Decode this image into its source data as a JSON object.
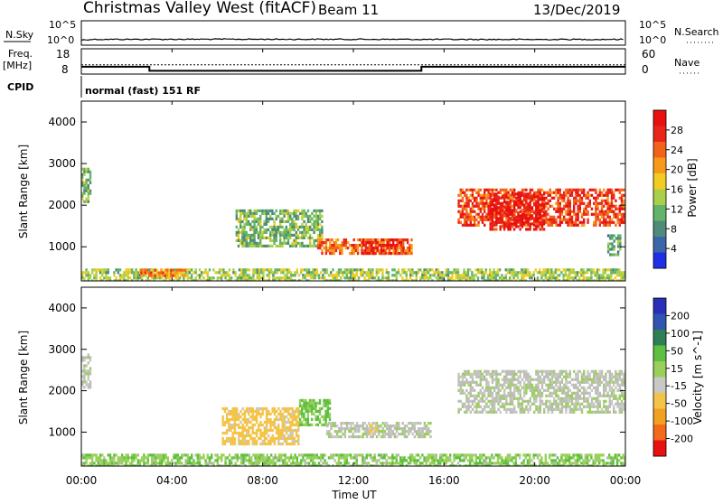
{
  "header": {
    "title": "Christmas Valley West (fitACF)",
    "beam": "Beam 11",
    "date": "13/Dec/2019"
  },
  "status_panels": {
    "nsky_label": "N.Sky",
    "nsearch_label": "N.Search",
    "noise_ticks": [
      "10^5",
      "10^0"
    ],
    "freq_label_lines": [
      "Freq.",
      "[MHz]"
    ],
    "freq_ticks": [
      "18",
      "8"
    ],
    "nave_label": "Nave",
    "nave_ticks": [
      "60",
      "0"
    ],
    "cpid_label": "CPID",
    "cpid_value": "normal (fast) 151 RF"
  },
  "time_axis": {
    "label": "Time UT",
    "ticks": [
      "00:00",
      "04:00",
      "08:00",
      "12:00",
      "16:00",
      "20:00",
      "00:00"
    ]
  },
  "colors": {
    "power_scale": [
      "#1f2fe6",
      "#3b67a8",
      "#4f8a7a",
      "#63b36a",
      "#a9d04a",
      "#f2cc22",
      "#f79a1a",
      "#f3621a",
      "#e8261a",
      "#e81010"
    ],
    "velocity_scale": [
      "#e81010",
      "#f26a1a",
      "#f1a020",
      "#f4c44a",
      "#c8c8c4",
      "#9ad05a",
      "#5cc040",
      "#2f7f55",
      "#2f55b0",
      "#2a2fb8"
    ],
    "ground_scatter": "#bdbdb8"
  },
  "chart_data": [
    {
      "type": "line",
      "title": "N.Sky / N.Search noise",
      "x_unit": "hours UT",
      "y_scale": "log",
      "ylim": [
        1,
        100000
      ],
      "series": [
        {
          "name": "N.Sky",
          "x": [
            0,
            0.5,
            6,
            12,
            16,
            20,
            23.9,
            24
          ],
          "y": [
            4,
            6,
            6.5,
            6.2,
            5.8,
            5.6,
            6,
            40
          ]
        },
        {
          "name": "N.Search",
          "x": [
            0,
            0.5,
            6,
            12,
            16,
            20,
            24
          ],
          "y": [
            2,
            3,
            3.2,
            3,
            2.8,
            2.7,
            2.8
          ]
        }
      ]
    },
    {
      "type": "line",
      "title": "Freq. / Nave",
      "series": [
        {
          "name": "Freq. [MHz]",
          "x": [
            0,
            3.0,
            3.0,
            15.0,
            15.0,
            24
          ],
          "y": [
            10.9,
            10.9,
            9.3,
            9.3,
            10.9,
            10.9
          ]
        },
        {
          "name": "Nave",
          "x": [
            0,
            24
          ],
          "y": [
            22,
            22
          ]
        }
      ],
      "freq_ylim": [
        8,
        18
      ],
      "nave_ylim": [
        0,
        60
      ]
    },
    {
      "type": "heatmap",
      "title": "Power [dB]",
      "xlabel": "Time UT",
      "ylabel": "Slant Range [km]",
      "xlim": [
        0,
        24
      ],
      "ylim": [
        180,
        4500
      ],
      "y_ticks": [
        1000,
        2000,
        3000,
        4000
      ],
      "colorbar_label": "Power [dB]",
      "colorbar_ticks": [
        4,
        8,
        12,
        16,
        20,
        24,
        28
      ],
      "colorbar_range": [
        0,
        32
      ],
      "regions": [
        {
          "t0": 0,
          "t1": 24,
          "r0": 200,
          "r1": 480,
          "value": 14
        },
        {
          "t0": 2.6,
          "t1": 4.6,
          "r0": 330,
          "r1": 470,
          "value": 22
        },
        {
          "t0": 6.8,
          "t1": 10.6,
          "r0": 1000,
          "r1": 1900,
          "value": 12
        },
        {
          "t0": 10.4,
          "t1": 14.6,
          "r0": 850,
          "r1": 1200,
          "value": 24
        },
        {
          "t0": 12.4,
          "t1": 14.2,
          "r0": 850,
          "r1": 1200,
          "value": 28
        },
        {
          "t0": 16.6,
          "t1": 24,
          "r0": 1500,
          "r1": 2400,
          "value": 26
        },
        {
          "t0": 18.0,
          "t1": 20.4,
          "r0": 1400,
          "r1": 2300,
          "value": 30
        },
        {
          "t0": 0,
          "t1": 0.4,
          "r0": 2100,
          "r1": 2900,
          "value": 12
        },
        {
          "t0": 23.2,
          "t1": 23.8,
          "r0": 800,
          "r1": 1300,
          "value": 10
        }
      ]
    },
    {
      "type": "heatmap",
      "title": "Velocity [m s^-1]",
      "xlabel": "Time UT",
      "ylabel": "Slant Range [km]",
      "xlim": [
        0,
        24
      ],
      "ylim": [
        180,
        4500
      ],
      "y_ticks": [
        1000,
        2000,
        3000,
        4000
      ],
      "colorbar_label": "Velocity [m s^-1]",
      "colorbar_ticks": [
        200,
        100,
        50,
        15,
        -15,
        -50,
        -100,
        -200
      ],
      "colorbar_range": [
        -250,
        250
      ],
      "regions": [
        {
          "t0": 0,
          "t1": 24,
          "r0": 200,
          "r1": 480,
          "value": 40
        },
        {
          "t0": 6.2,
          "t1": 9.6,
          "r0": 700,
          "r1": 1600,
          "value": -70
        },
        {
          "t0": 9.6,
          "t1": 11.0,
          "r0": 1200,
          "r1": 1800,
          "value": 60
        },
        {
          "t0": 10.8,
          "t1": 15.4,
          "r0": 900,
          "r1": 1250,
          "value": 0
        },
        {
          "t0": 12.6,
          "t1": 13.0,
          "r0": 950,
          "r1": 1200,
          "value": -70
        },
        {
          "t0": 16.6,
          "t1": 24,
          "r0": 1500,
          "r1": 2500,
          "value": 0
        },
        {
          "t0": 0,
          "t1": 0.4,
          "r0": 2100,
          "r1": 2900,
          "value": 0
        }
      ]
    }
  ]
}
